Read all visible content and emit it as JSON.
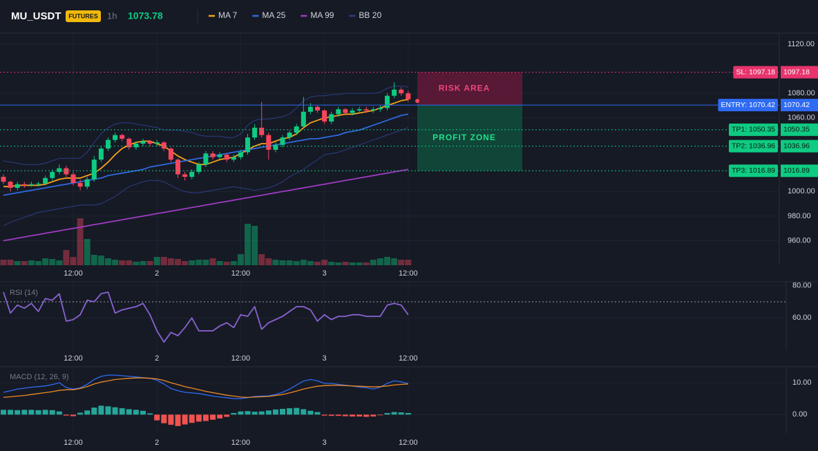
{
  "header": {
    "symbol": "MU_USDT",
    "badge": "FUTURES",
    "interval": "1h",
    "price": 1073.78
  },
  "chart_data": [
    {
      "type": "candlestick",
      "grid": true,
      "up_color": "#0ecb81",
      "down_color": "#f6465d",
      "categories": [
        null,
        null,
        null,
        null,
        null,
        null,
        null,
        null,
        null,
        null,
        "12:00",
        null,
        null,
        null,
        null,
        null,
        null,
        null,
        null,
        null,
        null,
        null,
        "2",
        null,
        null,
        null,
        null,
        null,
        null,
        null,
        null,
        null,
        null,
        null,
        "12:00",
        null,
        null,
        null,
        null,
        null,
        null,
        null,
        null,
        null,
        null,
        null,
        "3",
        null,
        null,
        null,
        null,
        null,
        null,
        null,
        null,
        null,
        null,
        null,
        "12:00"
      ],
      "open": [
        1012,
        1008,
        1003,
        1006,
        1005,
        1006,
        1006.5,
        1011,
        1016,
        1019,
        1014,
        1007,
        1004,
        1010,
        1026,
        1035,
        1042,
        1046,
        1043,
        1036,
        1039,
        1041,
        1039,
        1040,
        1035,
        1026,
        1014,
        1012,
        1016,
        1022,
        1031,
        1028,
        1030,
        1026,
        1028,
        1032,
        1044,
        1052,
        1046,
        1034,
        1038,
        1044,
        1048,
        1053,
        1065,
        1069,
        1066,
        1057,
        1063,
        1067,
        1064,
        1066,
        1067,
        1066,
        1067,
        1068,
        1078,
        1083,
        1080
      ],
      "high": [
        1014,
        1009,
        1008,
        1008,
        1008,
        1008,
        1013,
        1018,
        1022,
        1021,
        1016,
        1010,
        1012,
        1029,
        1037,
        1044,
        1048,
        1047,
        1044,
        1041,
        1043,
        1042,
        1042,
        1041,
        1036,
        1027,
        1016,
        1018,
        1024,
        1033,
        1033,
        1032,
        1031,
        1030,
        1034,
        1047,
        1055,
        1073,
        1048,
        1040,
        1046,
        1050,
        1055,
        1077,
        1072,
        1070,
        1067,
        1065,
        1069,
        1068,
        1068,
        1069,
        1069,
        1069,
        1070,
        1080,
        1089,
        1085,
        1082
      ],
      "low": [
        1006,
        1000,
        1001,
        1003,
        1004,
        1004,
        1005,
        1009,
        1014,
        1012,
        1005,
        1001,
        1002,
        1008,
        1024,
        1033,
        1040,
        1041,
        1034,
        1034,
        1037,
        1037,
        1037,
        1033,
        1024,
        1011,
        1009,
        1010,
        1014,
        1020,
        1026,
        1026,
        1024,
        1024,
        1026,
        1030,
        1042,
        1044,
        1026,
        1032,
        1036,
        1042,
        1046,
        1051,
        1063,
        1064,
        1055,
        1055,
        1061,
        1062,
        1062,
        1064,
        1064,
        1064,
        1065,
        1066,
        1076,
        1078,
        1073
      ],
      "close": [
        1008,
        1003,
        1006,
        1005,
        1006,
        1006.5,
        1011,
        1016,
        1019,
        1014,
        1007,
        1004,
        1010,
        1026,
        1035,
        1042,
        1046,
        1043,
        1036,
        1039,
        1041,
        1039,
        1040,
        1035,
        1026,
        1014,
        1012,
        1016,
        1022,
        1031,
        1028,
        1030,
        1026,
        1028,
        1032,
        1044,
        1052,
        1046,
        1034,
        1038,
        1044,
        1048,
        1053,
        1065,
        1069,
        1066,
        1057,
        1063,
        1067,
        1064,
        1066,
        1067,
        1066,
        1067,
        1068,
        1078,
        1083,
        1080,
        1075
      ],
      "volume": [
        8,
        8,
        6,
        6,
        7,
        6,
        10,
        9,
        7,
        22,
        12,
        68,
        38,
        15,
        14,
        10,
        8,
        7,
        7,
        5,
        6,
        6,
        12,
        12,
        10,
        9,
        6,
        7,
        8,
        8,
        10,
        6,
        5,
        6,
        16,
        60,
        57,
        16,
        10,
        8,
        7,
        7,
        6,
        8,
        6,
        5,
        8,
        5,
        4,
        5,
        4,
        4,
        4,
        8,
        10,
        12,
        10,
        8,
        8
      ],
      "series": [
        {
          "name": "MA 7",
          "color": "#f7a21b",
          "values": [
            1004,
            1004,
            1005,
            1005,
            1005,
            1005,
            1006,
            1008,
            1010,
            1011,
            1011,
            1011,
            1013,
            1015,
            1019,
            1024,
            1030,
            1035,
            1038,
            1040,
            1041,
            1041,
            1039,
            1037,
            1033,
            1029,
            1026,
            1024,
            1022,
            1022,
            1024,
            1026,
            1027,
            1028,
            1031,
            1034,
            1037,
            1039,
            1039,
            1041,
            1043,
            1044,
            1047,
            1052,
            1056,
            1058,
            1060,
            1061,
            1062,
            1063,
            1063,
            1064,
            1065,
            1066,
            1068,
            1070,
            1072,
            1074,
            1075
          ]
        },
        {
          "name": "MA 25",
          "color": "#2f6ae0",
          "values": [
            997,
            998,
            999,
            1000,
            1001,
            1002,
            1003,
            1004,
            1005,
            1006,
            1007,
            1008,
            1009,
            1010,
            1011,
            1013,
            1014,
            1015,
            1016,
            1017,
            1018,
            1020,
            1021,
            1022,
            1023,
            1024,
            1025,
            1026,
            1027,
            1028,
            1029,
            1030,
            1031,
            1032,
            1033,
            1034,
            1035,
            1036,
            1037,
            1038,
            1039,
            1040,
            1041,
            1042,
            1043,
            1043,
            1044,
            1045,
            1046,
            1048,
            1049,
            1050,
            1052,
            1054,
            1056,
            1058,
            1060,
            1062,
            1063
          ]
        },
        {
          "name": "MA 99",
          "color": "#a13bc4",
          "values": [
            960,
            961,
            962,
            963,
            964,
            965,
            966,
            967,
            968,
            969,
            970,
            971,
            972,
            973,
            974,
            975,
            976,
            977,
            978,
            979,
            980,
            981,
            982,
            983,
            984,
            985,
            986,
            987,
            988,
            989,
            990,
            991,
            992,
            993,
            994,
            995,
            996,
            997,
            998,
            999,
            1000,
            1001,
            1002,
            1003,
            1004,
            1005,
            1006,
            1007,
            1008,
            1009,
            1010,
            1011,
            1012,
            1013,
            1014,
            1015,
            1016,
            1017,
            1018
          ]
        }
      ],
      "bands": {
        "name": "BB 20",
        "color": "#2b3f86",
        "upper": [
          1025,
          1024,
          1023,
          1022,
          1022,
          1022,
          1023,
          1025,
          1027,
          1027,
          1027,
          1027,
          1032,
          1040,
          1047,
          1052,
          1055,
          1056,
          1056,
          1055,
          1054,
          1053,
          1052,
          1050,
          1050,
          1050,
          1049,
          1048,
          1046,
          1045,
          1045,
          1045,
          1044,
          1044,
          1047,
          1054,
          1058,
          1059,
          1059,
          1060,
          1061,
          1063,
          1068,
          1074,
          1077,
          1078,
          1078,
          1079,
          1079,
          1080,
          1080,
          1080,
          1080,
          1080,
          1081,
          1084,
          1086,
          1086,
          1085
        ],
        "lower": [
          972,
          975,
          977,
          979,
          981,
          983,
          984,
          985,
          986,
          987,
          988,
          989,
          989,
          989,
          990,
          993,
          996,
          1000,
          1004,
          1006,
          1008,
          1009,
          1009,
          1008,
          1005,
          1002,
          1000,
          999,
          999,
          1000,
          1001,
          1002,
          1003,
          1004,
          1003,
          1002,
          1001,
          1002,
          1003,
          1005,
          1008,
          1012,
          1015,
          1018,
          1022,
          1026,
          1030,
          1031,
          1032,
          1034,
          1036,
          1038,
          1040,
          1042,
          1044,
          1046,
          1048,
          1050,
          1052
        ]
      },
      "ylim": [
        940,
        1129
      ],
      "yticks": [
        {
          "value": 960,
          "label": "960.00"
        },
        {
          "value": 980,
          "label": "980.00"
        },
        {
          "value": 1000,
          "label": "1000.00"
        },
        {
          "value": 1060,
          "label": "1060.00"
        },
        {
          "value": 1080,
          "label": "1080.00"
        },
        {
          "value": 1120,
          "label": "1120.00"
        }
      ],
      "levels": [
        {
          "label": "SL: 1097.18",
          "value": 1097.18,
          "color": "#e8336d",
          "text_color": "#ffffff",
          "style": "dotted"
        },
        {
          "label": "ENTRY: 1070.42",
          "value": 1070.42,
          "color": "#2f6bf2",
          "text_color": "#ffffff",
          "style": "solid"
        },
        {
          "label": "TP1: 1050.35",
          "value": 1050.35,
          "color": "#0ecb81",
          "text_color": "#0b1a12",
          "style": "dotted"
        },
        {
          "label": "TP2: 1036.96",
          "value": 1036.96,
          "color": "#0ecb81",
          "text_color": "#0b1a12",
          "style": "dotted"
        },
        {
          "label": "TP3: 1016.89",
          "value": 1016.89,
          "color": "#0ecb81",
          "text_color": "#0b1a12",
          "style": "dotted"
        }
      ],
      "zones": [
        {
          "label": "RISK AREA",
          "color": "#5e1a37",
          "text_color": "#f0457c"
        },
        {
          "label": "PROFIT ZONE",
          "color": "#0f4a3b",
          "text_color": "#1fe08a"
        }
      ]
    },
    {
      "type": "line",
      "title": "RSI (14)",
      "grid": true,
      "color": "#8a63d2",
      "categories": [
        null,
        null,
        null,
        null,
        null,
        null,
        null,
        null,
        null,
        null,
        "12:00",
        null,
        null,
        null,
        null,
        null,
        null,
        null,
        null,
        null,
        null,
        null,
        "2",
        null,
        null,
        null,
        null,
        null,
        null,
        null,
        null,
        null,
        null,
        null,
        "12:00",
        null,
        null,
        null,
        null,
        null,
        null,
        null,
        null,
        null,
        null,
        null,
        "3",
        null,
        null,
        null,
        null,
        null,
        null,
        null,
        null,
        null,
        null,
        null,
        "12:00"
      ],
      "values": [
        76,
        63,
        68,
        66,
        69,
        64,
        72,
        71,
        75,
        58,
        59,
        62,
        71,
        70,
        75,
        76,
        63,
        65,
        66,
        67,
        69,
        62,
        52,
        45,
        51,
        49,
        54,
        60,
        52,
        52,
        52,
        55,
        57,
        54,
        62,
        61,
        67,
        53,
        57,
        59,
        61,
        64,
        67,
        67,
        65,
        58,
        62,
        59,
        61,
        61,
        62,
        62,
        61,
        61,
        61,
        68,
        69,
        68,
        62
      ],
      "level": 70,
      "ylim": [
        40,
        82
      ],
      "yticks": [
        {
          "value": 60,
          "label": "60.00"
        },
        {
          "value": 80,
          "label": "80.00"
        }
      ]
    },
    {
      "type": "macd",
      "title": "MACD (12, 26, 9)",
      "grid": true,
      "categories": [
        null,
        null,
        null,
        null,
        null,
        null,
        null,
        null,
        null,
        null,
        "12:00",
        null,
        null,
        null,
        null,
        null,
        null,
        null,
        null,
        null,
        null,
        null,
        "2",
        null,
        null,
        null,
        null,
        null,
        null,
        null,
        null,
        null,
        null,
        null,
        "12:00",
        null,
        null,
        null,
        null,
        null,
        null,
        null,
        null,
        null,
        null,
        null,
        "3",
        null,
        null,
        null,
        null,
        null,
        null,
        null,
        null,
        null,
        null,
        null,
        "12:00"
      ],
      "macd": {
        "color": "#2f6bf2",
        "values": [
          7.0,
          7.5,
          8,
          8.3,
          8.6,
          8.8,
          9.0,
          9.4,
          10.0,
          8.5,
          8.0,
          8.4,
          9.5,
          11,
          12,
          12.4,
          12.4,
          12.2,
          12.0,
          11.8,
          11.6,
          11.4,
          10.8,
          9.6,
          8.2,
          7.5,
          7.0,
          6.8,
          6.6,
          6.2,
          5.8,
          5.5,
          5.3,
          5.0,
          5.0,
          5.3,
          5.7,
          5.8,
          5.9,
          6.3,
          7.0,
          8.0,
          9.3,
          10.5,
          11.0,
          10.6,
          9.8,
          9.8,
          9.5,
          9.2,
          9.0,
          8.6,
          8.4,
          8.0,
          8.6,
          9.8,
          10.6,
          10.3,
          9.7
        ]
      },
      "signal": {
        "color": "#f08a24",
        "values": [
          5.4,
          5.6,
          5.8,
          6.0,
          6.3,
          6.6,
          6.9,
          7.2,
          7.6,
          7.8,
          7.8,
          8.2,
          8.8,
          9.6,
          10.2,
          10.6,
          11.0,
          11.2,
          11.4,
          11.5,
          11.5,
          11.4,
          11.2,
          10.7,
          10.0,
          9.4,
          8.8,
          8.3,
          7.8,
          7.3,
          6.9,
          6.5,
          6.1,
          5.8,
          5.5,
          5.4,
          5.5,
          5.6,
          5.7,
          6.0,
          6.3,
          6.8,
          7.4,
          8.0,
          8.5,
          8.9,
          9.1,
          9.2,
          9.2,
          9.1,
          9.0,
          8.9,
          8.8,
          8.7,
          8.8,
          9.0,
          9.3,
          9.5,
          9.6
        ]
      },
      "histogram": {
        "up_color": "#26a69a",
        "down_color": "#ef5350",
        "values": [
          1.5,
          1.5,
          1.4,
          1.5,
          1.5,
          1.4,
          1.5,
          1.4,
          1.0,
          -0.3,
          -0.5,
          0.6,
          1.3,
          2.2,
          2.8,
          2.6,
          2.3,
          2.0,
          1.7,
          1.5,
          1.2,
          0.4,
          -1.8,
          -2.7,
          -3.2,
          -3.6,
          -3.1,
          -2.6,
          -2.2,
          -2.0,
          -1.6,
          -1.2,
          -0.7,
          0.5,
          1.0,
          1.1,
          0.9,
          1.0,
          1.3,
          1.6,
          1.8,
          2.0,
          2.1,
          1.7,
          1.2,
          0.8,
          -0.3,
          -0.4,
          -0.4,
          -0.5,
          -0.6,
          -0.6,
          -0.7,
          -0.6,
          -0.2,
          0.5,
          0.8,
          0.7,
          0.5
        ]
      },
      "ylim": [
        -6,
        14.8
      ],
      "yticks": [
        {
          "value": 0,
          "label": "0.00"
        },
        {
          "value": 10,
          "label": "10.00"
        }
      ]
    }
  ]
}
